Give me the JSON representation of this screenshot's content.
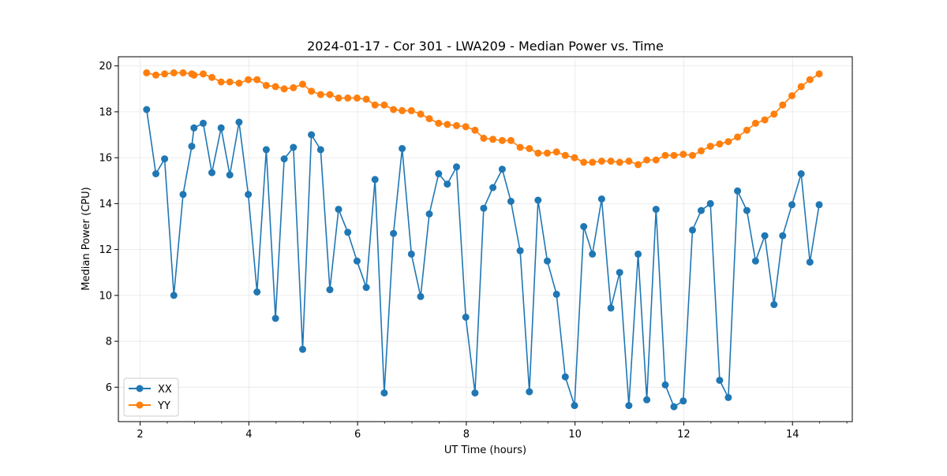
{
  "chart_data": {
    "type": "line",
    "title": "2024-01-17 - Cor 301 - LWA209 - Median Power vs. Time",
    "xlabel": "UT Time (hours)",
    "ylabel": "Median Power (CPU)",
    "xlim": [
      1.6,
      15.1
    ],
    "ylim": [
      4.5,
      20.4
    ],
    "xticks": [
      2,
      4,
      6,
      8,
      10,
      12,
      14
    ],
    "yticks": [
      6,
      8,
      10,
      12,
      14,
      16,
      18,
      20
    ],
    "grid": true,
    "legend_position": "lower-left",
    "colors": {
      "XX": "#1f77b4",
      "YY": "#ff7f0e"
    },
    "series": [
      {
        "name": "XX",
        "x": [
          2.12,
          2.29,
          2.45,
          2.62,
          2.79,
          2.95,
          2.99,
          3.16,
          3.32,
          3.49,
          3.65,
          3.82,
          3.99,
          4.15,
          4.32,
          4.49,
          4.65,
          4.82,
          4.99,
          5.15,
          5.32,
          5.49,
          5.65,
          5.82,
          5.99,
          6.16,
          6.32,
          6.49,
          6.66,
          6.82,
          6.99,
          7.16,
          7.32,
          7.49,
          7.65,
          7.82,
          7.99,
          8.16,
          8.32,
          8.49,
          8.66,
          8.82,
          8.99,
          9.16,
          9.32,
          9.49,
          9.66,
          9.82,
          9.99,
          10.16,
          10.32,
          10.49,
          10.66,
          10.82,
          10.99,
          11.16,
          11.32,
          11.49,
          11.66,
          11.82,
          11.99,
          12.16,
          12.32,
          12.49,
          12.66,
          12.82,
          12.99,
          13.16,
          13.32,
          13.49,
          13.66,
          13.82,
          13.99,
          14.16,
          14.32,
          14.49
        ],
        "values": [
          18.1,
          15.3,
          15.95,
          10.0,
          14.4,
          16.5,
          17.3,
          17.5,
          15.35,
          17.3,
          15.25,
          17.55,
          14.4,
          10.15,
          16.35,
          9.0,
          15.95,
          16.45,
          7.65,
          17.0,
          16.35,
          10.25,
          13.75,
          12.75,
          11.5,
          10.35,
          15.05,
          5.75,
          12.7,
          16.4,
          11.8,
          9.95,
          13.55,
          15.3,
          14.85,
          15.6,
          9.05,
          5.75,
          13.8,
          14.7,
          15.5,
          14.1,
          11.95,
          5.8,
          14.15,
          11.5,
          10.05,
          6.45,
          5.2,
          13.0,
          11.8,
          14.2,
          9.45,
          11.0,
          5.2,
          11.8,
          5.45,
          13.75,
          6.1,
          5.15,
          5.4,
          12.85,
          13.7,
          14.0,
          6.3,
          5.55,
          14.55,
          13.7,
          11.5,
          12.6,
          9.6,
          12.6,
          13.95,
          15.3,
          11.45,
          13.95
        ]
      },
      {
        "name": "YY",
        "x": [
          2.12,
          2.29,
          2.45,
          2.62,
          2.79,
          2.95,
          2.99,
          3.16,
          3.32,
          3.49,
          3.65,
          3.82,
          3.99,
          4.15,
          4.32,
          4.49,
          4.65,
          4.82,
          4.99,
          5.15,
          5.32,
          5.49,
          5.65,
          5.82,
          5.99,
          6.16,
          6.32,
          6.49,
          6.66,
          6.82,
          6.99,
          7.16,
          7.32,
          7.49,
          7.65,
          7.82,
          7.99,
          8.16,
          8.32,
          8.49,
          8.66,
          8.82,
          8.99,
          9.16,
          9.32,
          9.49,
          9.66,
          9.82,
          9.99,
          10.16,
          10.32,
          10.49,
          10.66,
          10.82,
          10.99,
          11.16,
          11.32,
          11.49,
          11.66,
          11.82,
          11.99,
          12.16,
          12.32,
          12.49,
          12.66,
          12.82,
          12.99,
          13.16,
          13.32,
          13.49,
          13.66,
          13.82,
          13.99,
          14.16,
          14.32,
          14.49
        ],
        "values": [
          19.7,
          19.6,
          19.65,
          19.7,
          19.7,
          19.65,
          19.6,
          19.65,
          19.5,
          19.3,
          19.3,
          19.25,
          19.4,
          19.4,
          19.15,
          19.1,
          19.0,
          19.05,
          19.2,
          18.9,
          18.75,
          18.75,
          18.6,
          18.6,
          18.6,
          18.55,
          18.3,
          18.3,
          18.1,
          18.05,
          18.05,
          17.9,
          17.7,
          17.5,
          17.45,
          17.4,
          17.35,
          17.2,
          16.85,
          16.8,
          16.75,
          16.75,
          16.45,
          16.4,
          16.2,
          16.2,
          16.25,
          16.1,
          16.0,
          15.8,
          15.8,
          15.85,
          15.85,
          15.8,
          15.85,
          15.7,
          15.9,
          15.9,
          16.1,
          16.1,
          16.15,
          16.1,
          16.3,
          16.5,
          16.6,
          16.7,
          16.9,
          17.2,
          17.5,
          17.65,
          17.9,
          18.3,
          18.7,
          19.1,
          19.4,
          19.65
        ]
      }
    ]
  }
}
